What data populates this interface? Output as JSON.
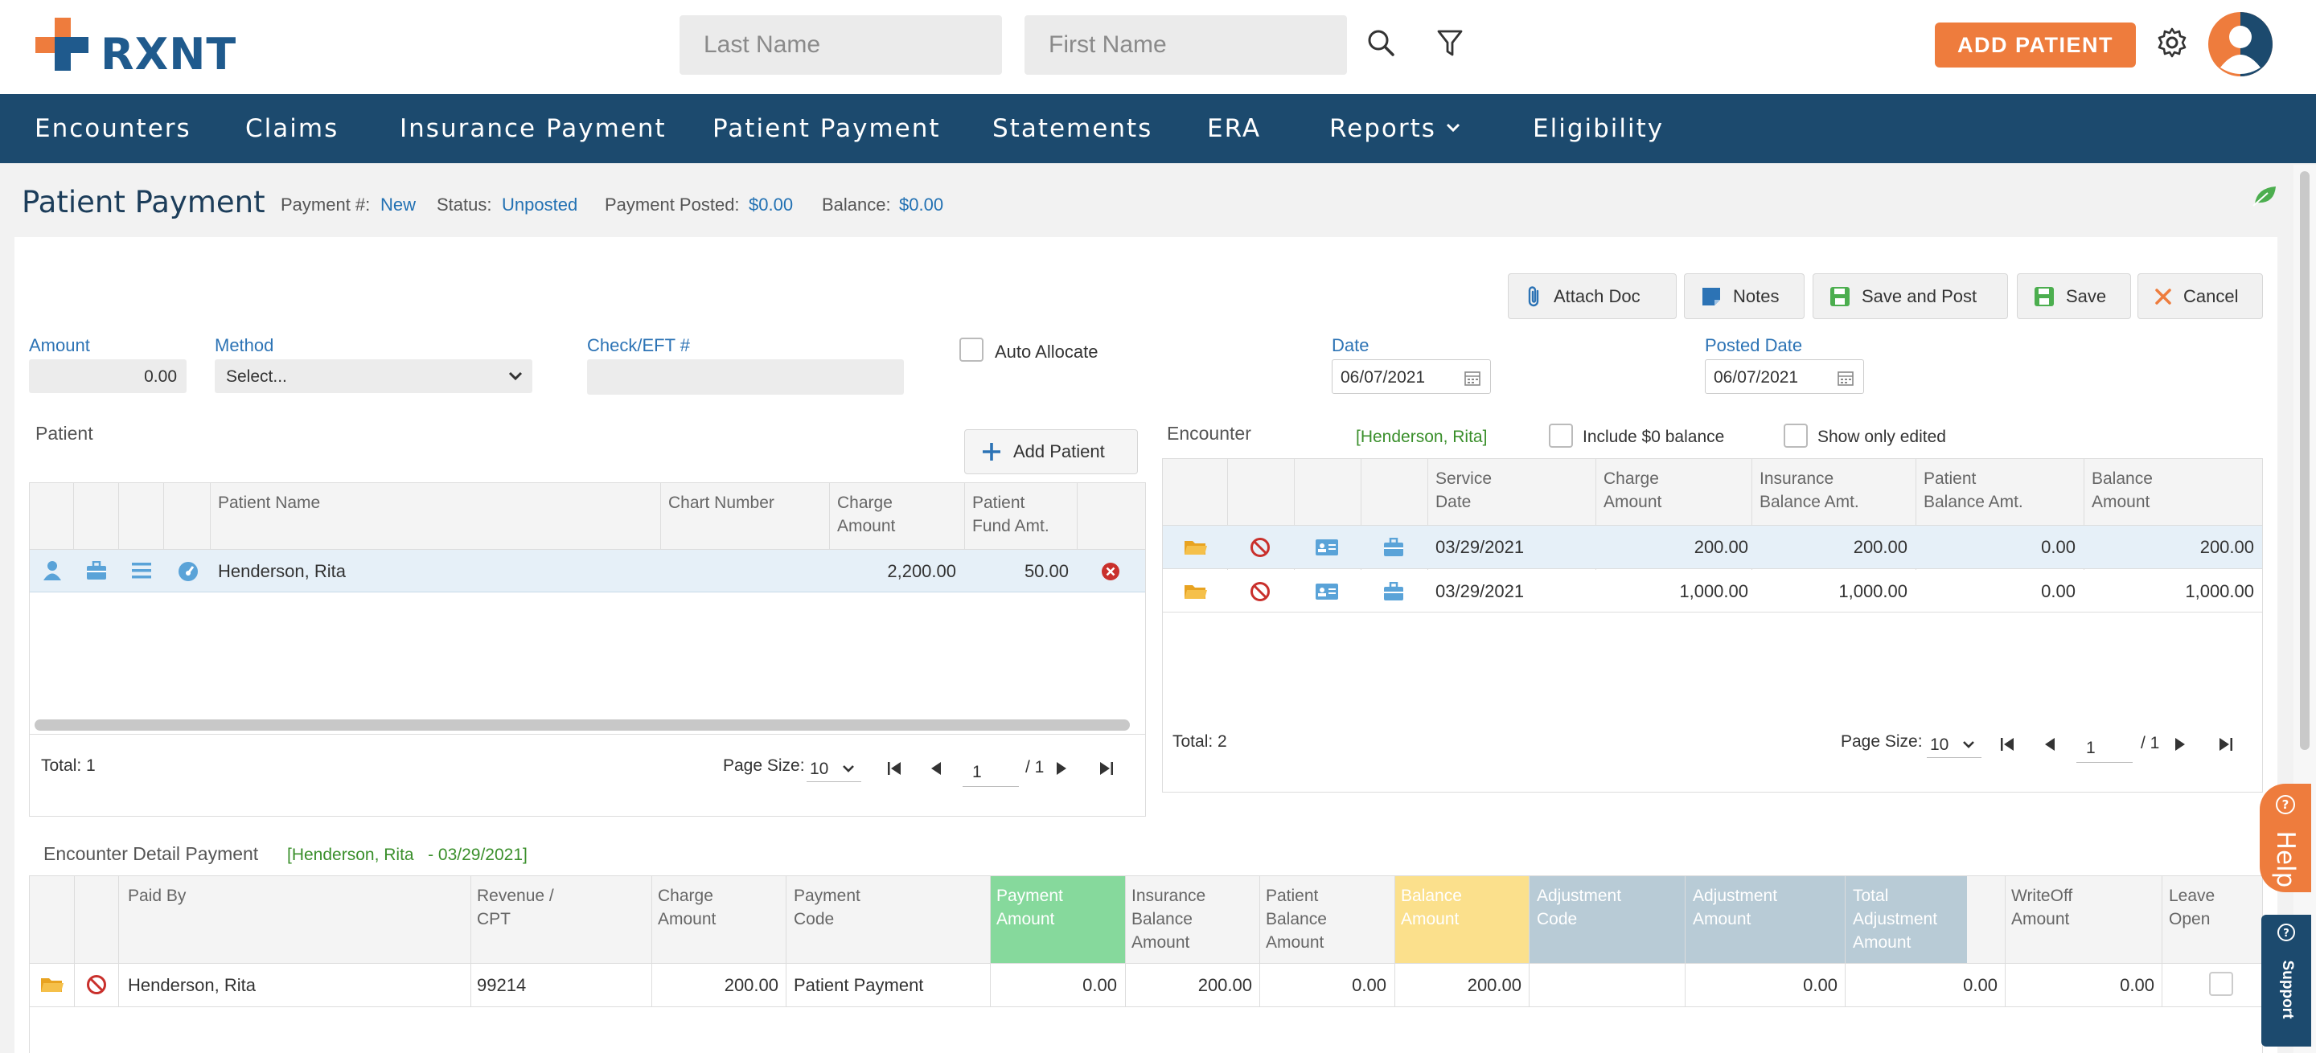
{
  "header": {
    "logo_text": "RXNT",
    "last_name_placeholder": "Last Name",
    "first_name_placeholder": "First Name",
    "add_patient_label": "ADD PATIENT"
  },
  "nav": {
    "items": [
      "Encounters",
      "Claims",
      "Insurance Payment",
      "Patient Payment",
      "Statements",
      "ERA",
      "Reports",
      "Eligibility"
    ]
  },
  "page": {
    "title": "Patient Payment",
    "payment_no_label": "Payment #:",
    "payment_no_value": "New",
    "status_label": "Status:",
    "status_value": "Unposted",
    "posted_label": "Payment Posted:",
    "posted_value": "$0.00",
    "balance_label": "Balance:",
    "balance_value": "$0.00"
  },
  "toolbar": {
    "attach_doc": "Attach Doc",
    "notes": "Notes",
    "save_and_post": "Save and Post",
    "save": "Save",
    "cancel": "Cancel"
  },
  "form": {
    "amount_label": "Amount",
    "amount_value": "0.00",
    "method_label": "Method",
    "method_value": "Select...",
    "check_label": "Check/EFT #",
    "check_value": "",
    "auto_allocate_label": "Auto Allocate",
    "date_label": "Date",
    "date_value": "06/07/2021",
    "posted_date_label": "Posted Date",
    "posted_date_value": "06/07/2021"
  },
  "patient_grid": {
    "section_label": "Patient",
    "add_patient_label": "Add Patient",
    "columns": [
      "Patient Name",
      "Chart Number",
      "Charge Amount",
      "Patient Fund Amt."
    ],
    "rows": [
      {
        "name": "Henderson, Rita",
        "chart": "",
        "charge": "2,200.00",
        "fund": "50.00"
      }
    ],
    "total": "Total: 1",
    "page_size_label": "Page Size:",
    "page_size": "10",
    "page": "1",
    "page_of": "/ 1"
  },
  "encounter_grid": {
    "section_label": "Encounter",
    "patient_tag": "[Henderson, Rita]",
    "include_zero_label": "Include $0 balance",
    "show_edited_label": "Show only edited",
    "columns": [
      "Service Date",
      "Charge Amount",
      "Insurance Balance Amt.",
      "Patient Balance Amt.",
      "Balance Amount"
    ],
    "rows": [
      {
        "date": "03/29/2021",
        "charge": "200.00",
        "ins": "200.00",
        "pat": "0.00",
        "bal": "200.00"
      },
      {
        "date": "03/29/2021",
        "charge": "1,000.00",
        "ins": "1,000.00",
        "pat": "0.00",
        "bal": "1,000.00"
      }
    ],
    "total": "Total: 2",
    "page_size_label": "Page Size:",
    "page_size": "10",
    "page": "1",
    "page_of": "/ 1"
  },
  "detail_grid": {
    "section_label": "Encounter Detail Payment",
    "tag": "[Henderson, Rita   - 03/29/2021]",
    "columns": [
      "Paid By",
      "Revenue / CPT",
      "Charge Amount",
      "Payment Code",
      "Payment Amount",
      "Insurance Balance Amount",
      "Patient Balance Amount",
      "Balance Amount",
      "Adjustment Code",
      "Adjustment Amount",
      "Total Adjustment Amount",
      "WriteOff Amount",
      "Leave Open"
    ],
    "rows": [
      {
        "paid_by": "Henderson, Rita",
        "cpt": "99214",
        "charge": "200.00",
        "code": "Patient Payment",
        "payment": "0.00",
        "ins": "200.00",
        "pat": "0.00",
        "bal": "200.00",
        "adj_code": "",
        "adj_amt": "0.00",
        "total_adj": "0.00",
        "writeoff": "0.00"
      }
    ]
  },
  "side": {
    "help_label": "Help",
    "support_label": "Support"
  },
  "colors": {
    "brand_orange": "#ee7c3d",
    "nav_blue": "#1c4a6e",
    "payment_green": "#86d99c",
    "balance_yellow": "#fbe08c",
    "adjustment_blue": "#b8cbd6"
  }
}
